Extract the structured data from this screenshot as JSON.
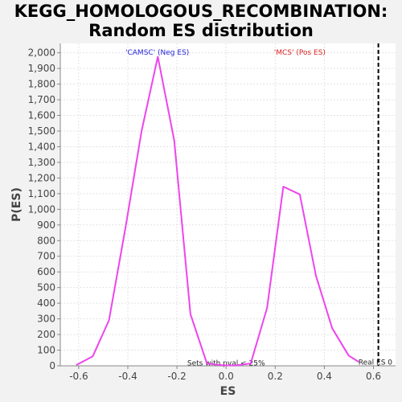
{
  "chart_data": {
    "type": "line",
    "title": "KEGG_HOMOLOGOUS_RECOMBINATION:",
    "subtitle": "Random ES distribution",
    "xlabel": "ES",
    "ylabel": "P(ES)",
    "xlim": [
      -0.675,
      0.69
    ],
    "ylim": [
      0,
      2060
    ],
    "x_ticks": [
      -0.6,
      -0.4,
      -0.2,
      0.0,
      0.2,
      0.4,
      0.6
    ],
    "x_tick_labels": [
      "-0.6",
      "-0.4",
      "-0.2",
      "0.0",
      "0.2",
      "0.4",
      "0.6"
    ],
    "y_ticks": [
      0,
      100,
      200,
      300,
      400,
      500,
      600,
      700,
      800,
      900,
      1000,
      1100,
      1200,
      1300,
      1400,
      1500,
      1600,
      1700,
      1800,
      1900,
      2000
    ],
    "y_tick_labels": [
      "0",
      "100",
      "200",
      "300",
      "400",
      "500",
      "600",
      "700",
      "800",
      "900",
      "1,000",
      "1,100",
      "1,200",
      "1,300",
      "1,400",
      "1,500",
      "1,600",
      "1,700",
      "1,800",
      "1,900",
      "2,000"
    ],
    "grid": true,
    "series_color": "#ee44ee",
    "series": [
      {
        "x": [
          -0.61,
          -0.543,
          -0.477,
          -0.41,
          -0.344,
          -0.278,
          -0.211,
          -0.145,
          -0.078,
          -0.012,
          0.034,
          0.1,
          0.167,
          0.233,
          0.3,
          0.366,
          0.432,
          0.499,
          0.54
        ],
        "y": [
          5,
          60,
          290,
          880,
          1500,
          1975,
          1440,
          330,
          15,
          3,
          2,
          15,
          370,
          1145,
          1095,
          575,
          240,
          65,
          25
        ]
      }
    ],
    "annotations": {
      "neg_label": "'CAMSC' (Neg ES)",
      "neg_color": "#2222dd",
      "pos_label": "'MCS' (Pos ES)",
      "pos_color": "#dd2222",
      "bottom_note": "Sets with pval < 25%",
      "real_es_label": "Real ES 0",
      "real_es_value": 0.62
    }
  }
}
